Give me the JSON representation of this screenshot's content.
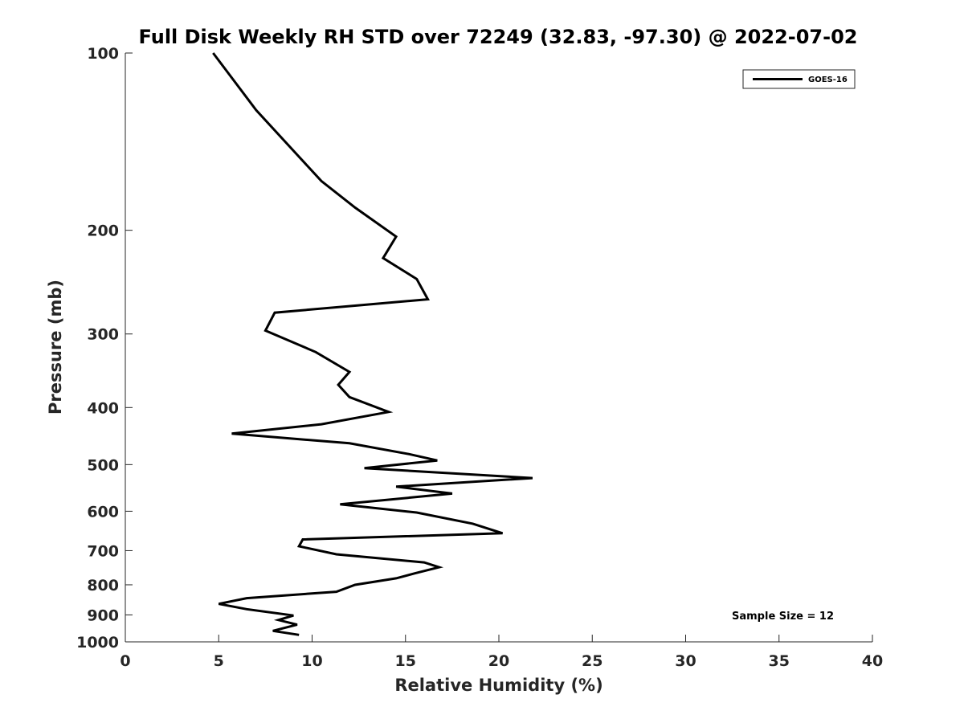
{
  "chart_data": {
    "type": "line",
    "title": "Full Disk Weekly RH STD over 72249 (32.83, -97.30) @ 2022-07-02",
    "xlabel": "Relative Humidity (%)",
    "ylabel": "Pressure (mb)",
    "xlim": [
      0,
      40
    ],
    "ylim": [
      100,
      1000
    ],
    "y_scale": "log",
    "y_reversed": true,
    "x_ticks": [
      0,
      5,
      10,
      15,
      20,
      25,
      30,
      35,
      40
    ],
    "y_ticks": [
      100,
      200,
      300,
      400,
      500,
      600,
      700,
      800,
      900,
      1000
    ],
    "grid": false,
    "legend_position": "top-right",
    "series": [
      {
        "name": "GOES-16",
        "color": "#000000",
        "points": [
          [
            4.7,
            100
          ],
          [
            7.0,
            125
          ],
          [
            9.3,
            150
          ],
          [
            10.5,
            165
          ],
          [
            12.3,
            183
          ],
          [
            14.5,
            205
          ],
          [
            13.8,
            223
          ],
          [
            15.6,
            242
          ],
          [
            16.2,
            262
          ],
          [
            8.0,
            276
          ],
          [
            7.5,
            296
          ],
          [
            10.2,
            322
          ],
          [
            12.0,
            348
          ],
          [
            11.4,
            366
          ],
          [
            12.0,
            384
          ],
          [
            14.1,
            407
          ],
          [
            10.5,
            427
          ],
          [
            5.7,
            443
          ],
          [
            12.0,
            460
          ],
          [
            15.2,
            480
          ],
          [
            16.7,
            492
          ],
          [
            12.8,
            507
          ],
          [
            21.8,
            527
          ],
          [
            14.5,
            545
          ],
          [
            17.5,
            560
          ],
          [
            11.5,
            584
          ],
          [
            15.6,
            603
          ],
          [
            18.6,
            630
          ],
          [
            20.2,
            654
          ],
          [
            9.5,
            670
          ],
          [
            9.3,
            688
          ],
          [
            11.3,
            710
          ],
          [
            16.0,
            733
          ],
          [
            16.8,
            747
          ],
          [
            15.5,
            765
          ],
          [
            14.5,
            780
          ],
          [
            12.3,
            800
          ],
          [
            11.3,
            822
          ],
          [
            6.5,
            843
          ],
          [
            5.0,
            862
          ],
          [
            6.5,
            880
          ],
          [
            9.0,
            902
          ],
          [
            8.2,
            918
          ],
          [
            9.2,
            935
          ],
          [
            7.9,
            958
          ],
          [
            9.3,
            973
          ]
        ]
      }
    ],
    "annotations": [
      "Sample Size = 12"
    ]
  }
}
